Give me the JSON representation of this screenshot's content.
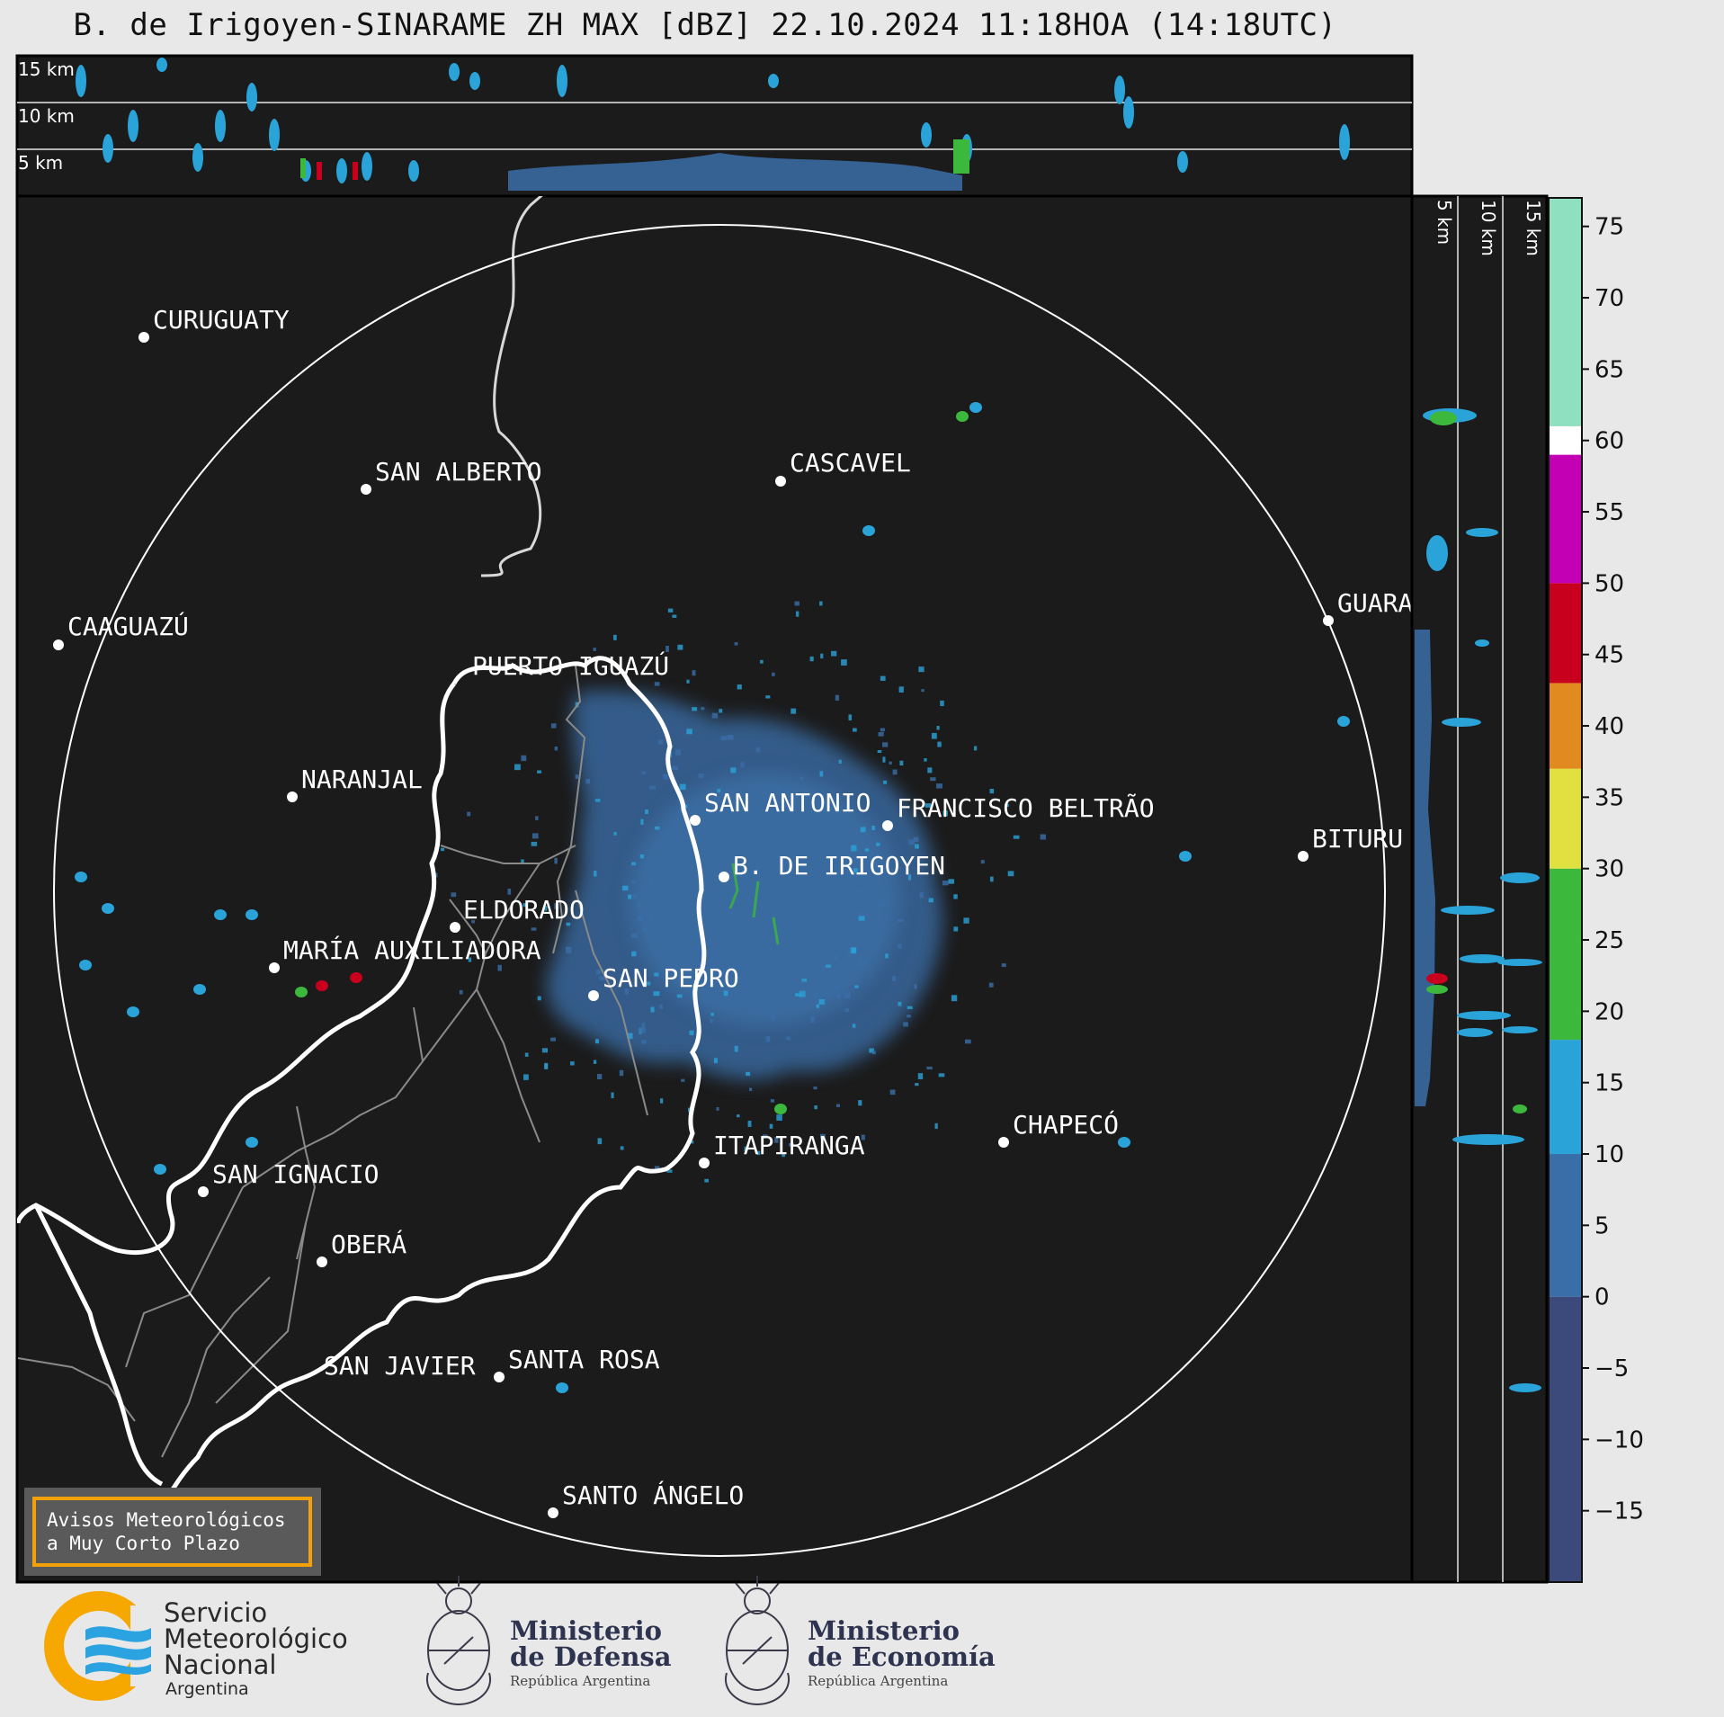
{
  "title": "B. de Irigoyen-SINARAME ZH MAX [dBZ] 22.10.2024 11:18HOA (14:18UTC)",
  "top_panel": {
    "labels": [
      "15 km",
      "10 km",
      "5 km"
    ]
  },
  "right_panel": {
    "labels": [
      "5 km",
      "10 km",
      "15 km"
    ]
  },
  "colorbar": {
    "ticks": [
      "75",
      "70",
      "65",
      "60",
      "55",
      "50",
      "45",
      "40",
      "35",
      "30",
      "25",
      "20",
      "15",
      "10",
      "5",
      "0",
      "−5",
      "−10",
      "−15"
    ],
    "tick_values": [
      75,
      70,
      65,
      60,
      55,
      50,
      45,
      40,
      35,
      30,
      25,
      20,
      15,
      10,
      5,
      0,
      -5,
      -10,
      -15
    ],
    "range": [
      -20,
      77
    ],
    "color_bands": [
      {
        "from": -20,
        "to": 0,
        "color": "#3b4a7a"
      },
      {
        "from": 0,
        "to": 10,
        "color": "#3a6ea8"
      },
      {
        "from": 10,
        "to": 18,
        "color": "#2aa3d8"
      },
      {
        "from": 18,
        "to": 30,
        "color": "#3cb83c"
      },
      {
        "from": 30,
        "to": 37,
        "color": "#e0e040"
      },
      {
        "from": 37,
        "to": 43,
        "color": "#e08a20"
      },
      {
        "from": 43,
        "to": 50,
        "color": "#c8001e"
      },
      {
        "from": 50,
        "to": 59,
        "color": "#c400b4"
      },
      {
        "from": 59,
        "to": 61,
        "color": "#ffffff"
      },
      {
        "from": 61,
        "to": 77,
        "color": "#8fe0c0"
      }
    ]
  },
  "cities": [
    {
      "name": "CURUGUATY"
    },
    {
      "name": "SAN ALBERTO"
    },
    {
      "name": "CASCAVEL"
    },
    {
      "name": "CAAGUAZÚ"
    },
    {
      "name": "GUARA"
    },
    {
      "name": "PUERTO IGUAZÚ"
    },
    {
      "name": "NARANJAL"
    },
    {
      "name": "SAN ANTONIO"
    },
    {
      "name": "FRANCISCO BELTRÃO"
    },
    {
      "name": "BITURU"
    },
    {
      "name": "B. DE IRIGOYEN"
    },
    {
      "name": "ELDORADO"
    },
    {
      "name": "MARÍA AUXILIADORA"
    },
    {
      "name": "SAN PEDRO"
    },
    {
      "name": "CHAPECÓ"
    },
    {
      "name": "ITAPIRANGA"
    },
    {
      "name": "SAN IGNACIO"
    },
    {
      "name": "OBERÁ"
    },
    {
      "name": "SAN JAVIER"
    },
    {
      "name": "SANTA ROSA"
    },
    {
      "name": "SANTO ÁNGELO"
    }
  ],
  "warning_box": {
    "line1": "Avisos Meteorológicos",
    "line2": "a Muy Corto Plazo"
  },
  "logos": {
    "smn": {
      "line1": "Servicio",
      "line2": "Meteorológico",
      "line3": "Nacional",
      "line4": "Argentina"
    },
    "defensa": {
      "line1": "Ministerio",
      "line2": "de Defensa",
      "line3": "República Argentina"
    },
    "economia": {
      "line1": "Ministerio",
      "line2": "de Economía",
      "line3": "República Argentina"
    }
  },
  "colors": {
    "map_background": "#1b1b1b",
    "page_background": "#e8e8e8",
    "echo_light": "#3a6ea8",
    "echo_medium": "#2aa3d8",
    "echo_green": "#3cb83c",
    "echo_red": "#c8001e",
    "warning_border": "#f2a10a",
    "logo_orange": "#f6a800",
    "logo_blue": "#2aa3e0"
  }
}
